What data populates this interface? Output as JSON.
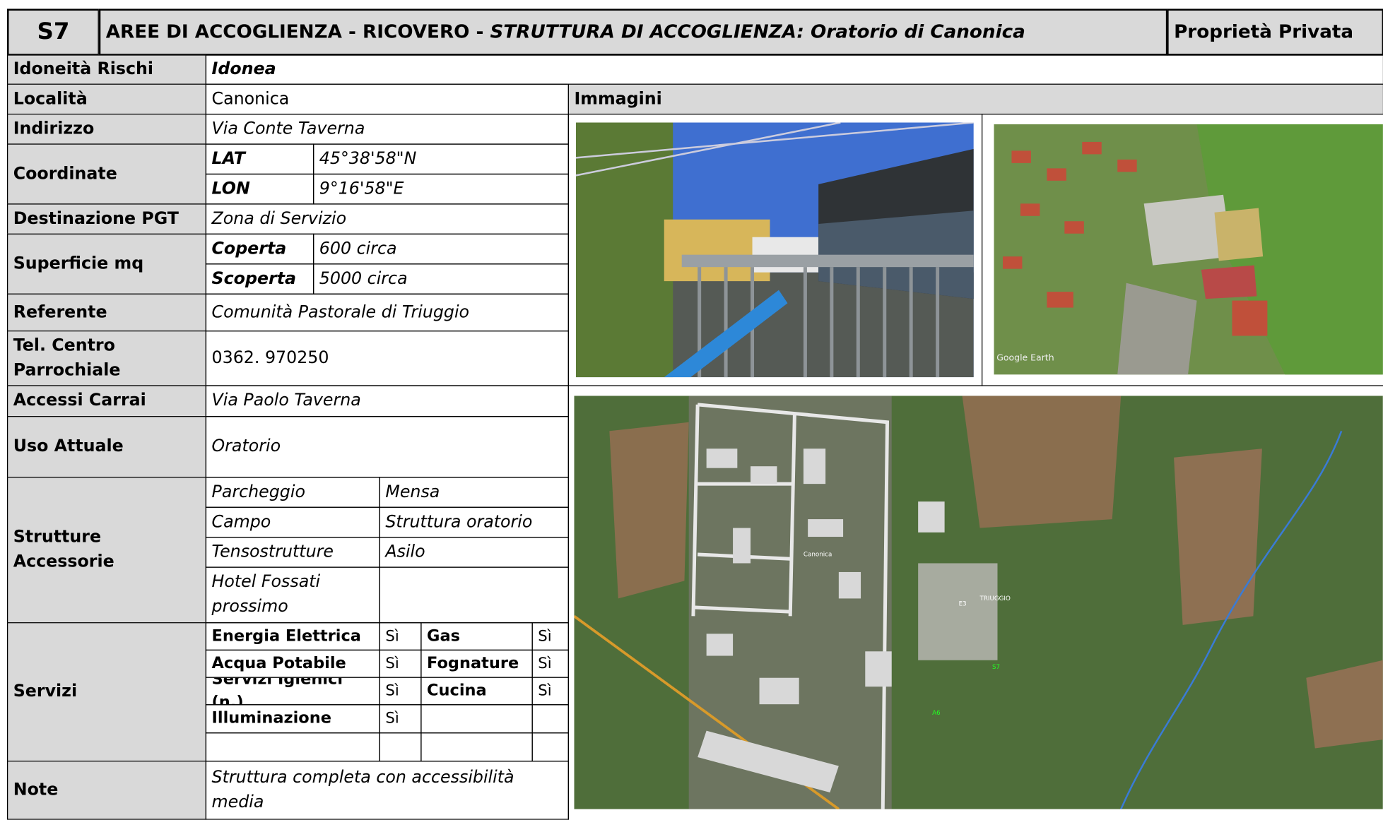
{
  "header": {
    "code": "S7",
    "title_prefix": "AREE DI ACCOGLIENZA - RICOVERO - ",
    "title_emphasis": "STRUTTURA DI ACCOGLIENZA: Oratorio di Canonica",
    "ownership": "Proprietà Privata"
  },
  "fields": {
    "suitability": {
      "label": "Idoneità Rischi",
      "value": "Idonea"
    },
    "locality": {
      "label": "Località",
      "value": "Canonica"
    },
    "address": {
      "label": "Indirizzo",
      "value": "Via Conte Taverna"
    },
    "coordinates": {
      "label": "Coordinate",
      "lat_label": "LAT",
      "lat": "45°38'58\"N",
      "lon_label": "LON",
      "lon": "9°16'58\"E"
    },
    "pgt": {
      "label": "Destinazione PGT",
      "value": "Zona di Servizio"
    },
    "surface": {
      "label": "Superficie mq",
      "covered_label": "Coperta",
      "covered": "600 circa",
      "open_label": "Scoperta",
      "open": "5000 circa"
    },
    "contact": {
      "label": "Referente",
      "value": "Comunità Pastorale di Triuggio"
    },
    "phone": {
      "label": "Tel. Centro Parrochiale",
      "value": "0362. 970250"
    },
    "vehicle_access": {
      "label": "Accessi Carrai",
      "value": "Via Paolo Taverna"
    },
    "current_use": {
      "label": "Uso Attuale",
      "value": "Oratorio"
    },
    "facilities": {
      "label": "Strutture Accessorie",
      "items": [
        "Parcheggio",
        "Mensa",
        "Campo",
        "Struttura oratorio",
        "Tensostrutture",
        "Asilo",
        "Hotel Fossati prossimo"
      ]
    },
    "services": {
      "label": "Servizi",
      "items": [
        {
          "name": "Energia Elettrica",
          "value": "Sì"
        },
        {
          "name": "Gas",
          "value": "Sì"
        },
        {
          "name": "Acqua Potabile",
          "value": "Sì"
        },
        {
          "name": "Fognature",
          "value": "Sì"
        },
        {
          "name": "Servizi Igienici (n.)",
          "value": "Sì"
        },
        {
          "name": "Cucina",
          "value": "Sì"
        },
        {
          "name": "Illuminazione",
          "value": "Sì"
        }
      ]
    },
    "notes": {
      "label": "Note",
      "value": "Struttura completa con accessibilità media"
    }
  },
  "images": {
    "label": "Immagini",
    "watermark": "Google Earth",
    "map_labels": [
      "Canonica",
      "E3",
      "TRIUGGIO",
      "S7",
      "A6"
    ]
  }
}
